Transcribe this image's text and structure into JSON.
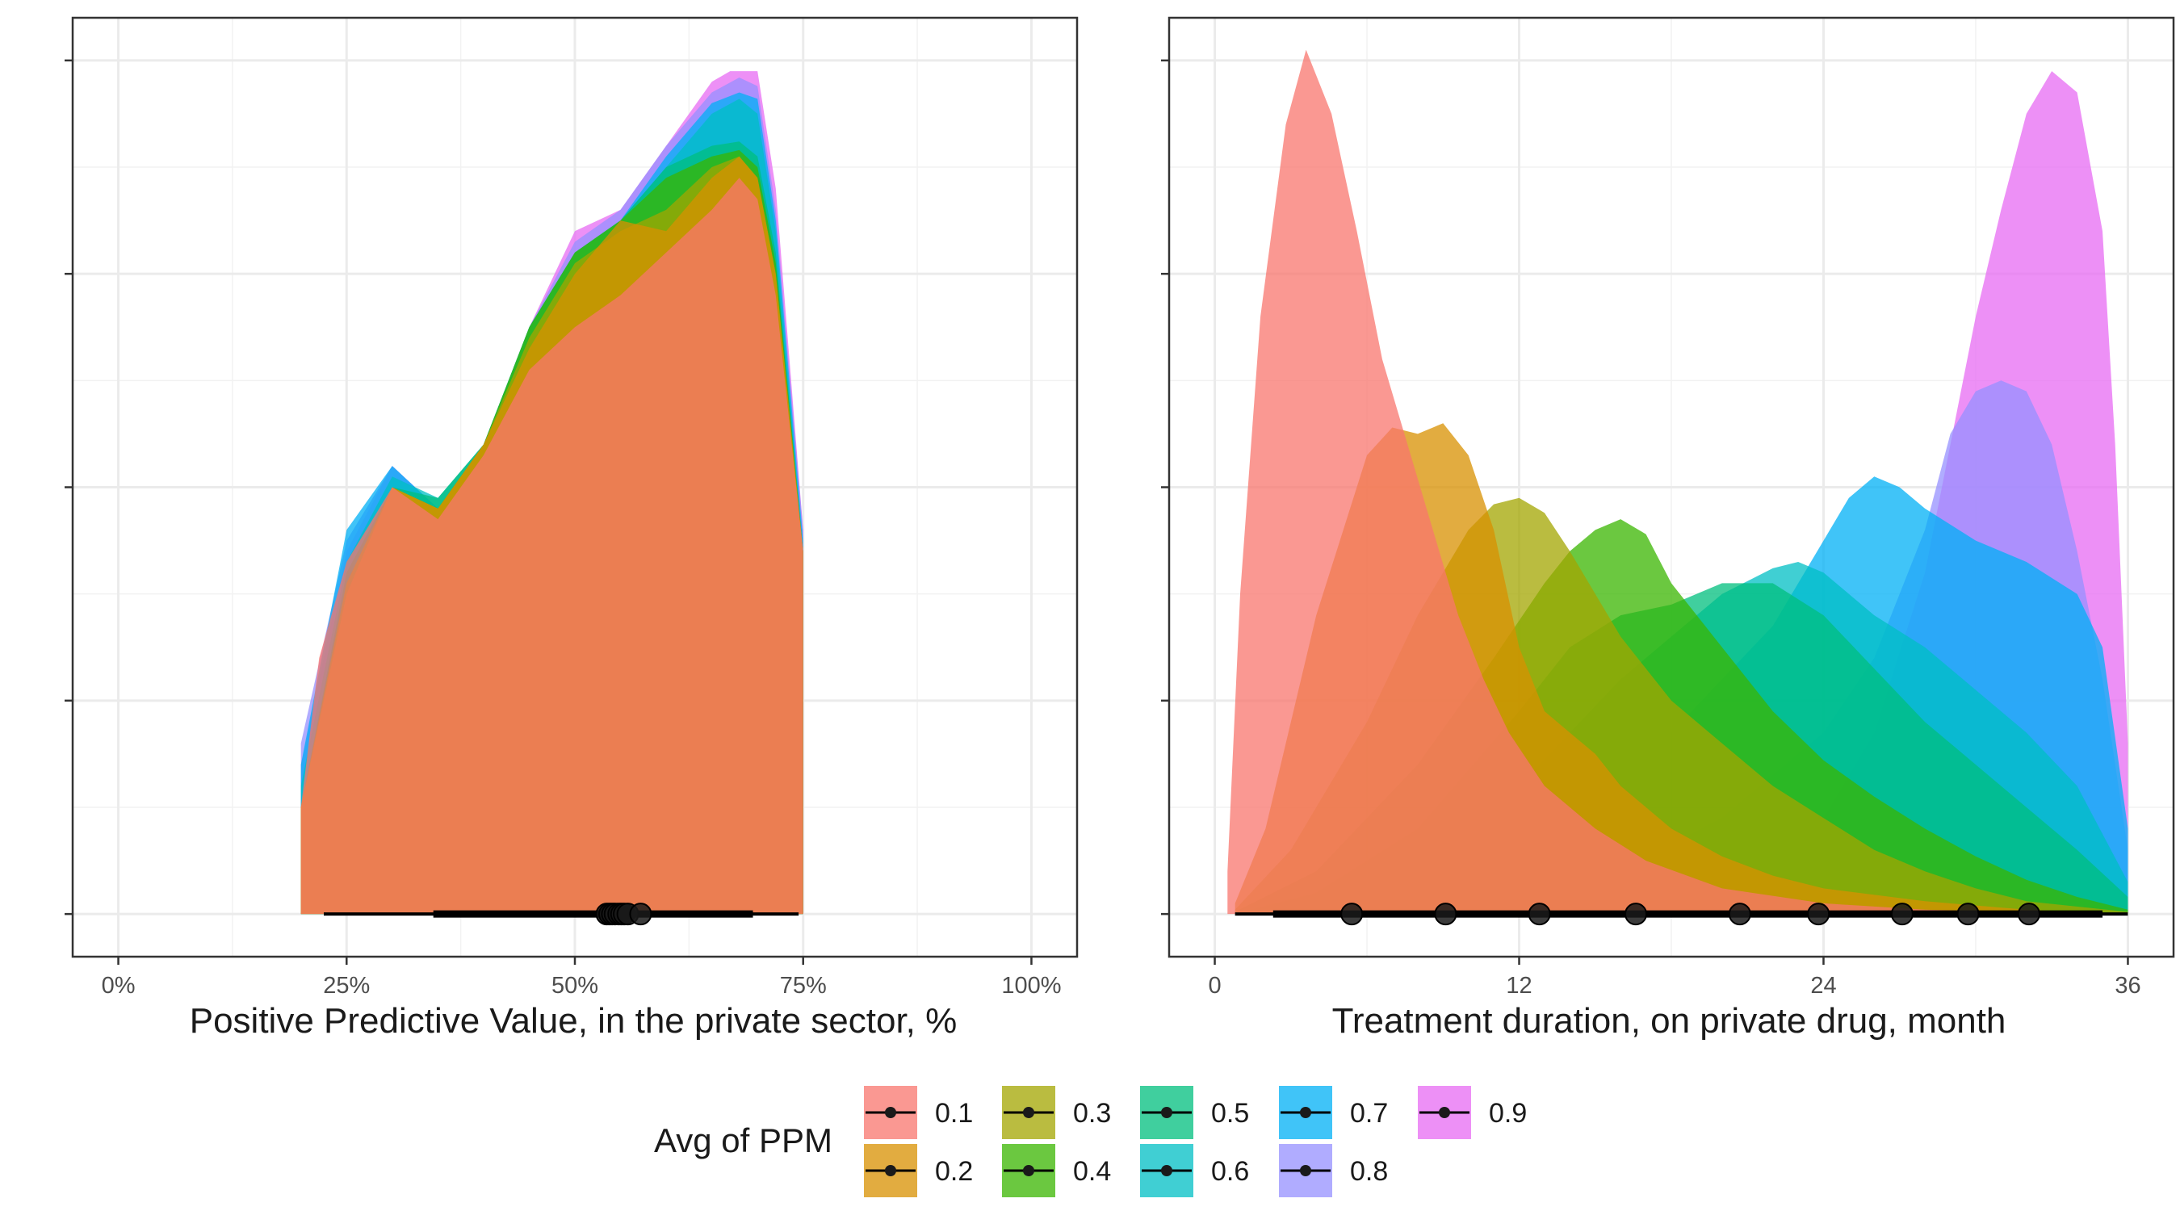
{
  "legend": {
    "title": "Avg of PPM",
    "items": [
      {
        "label": "0.1",
        "color": "#F8766D"
      },
      {
        "label": "0.2",
        "color": "#D89000"
      },
      {
        "label": "0.3",
        "color": "#A3A500"
      },
      {
        "label": "0.4",
        "color": "#39B600"
      },
      {
        "label": "0.5",
        "color": "#00BF7D"
      },
      {
        "label": "0.6",
        "color": "#00BFC4"
      },
      {
        "label": "0.7",
        "color": "#00B0F6"
      },
      {
        "label": "0.8",
        "color": "#9590FF"
      },
      {
        "label": "0.9",
        "color": "#E76BF3"
      }
    ]
  },
  "chart_data": [
    {
      "type": "area",
      "subtype": "density",
      "title": "",
      "xlabel": "Positive Predictive Value, in the private sector, %",
      "ylabel": "",
      "xlim": [
        -5,
        105
      ],
      "ylim": [
        -0.2,
        4.2
      ],
      "x_ticks": [
        0,
        25,
        50,
        75,
        100
      ],
      "x_tick_labels": [
        "0%",
        "25%",
        "50%",
        "75%",
        "100%"
      ],
      "y_tick_count": 5,
      "grid": true,
      "fill_opacity": 0.75,
      "series": [
        {
          "name": "0.9",
          "x": [
            20,
            25,
            30,
            35,
            40,
            45,
            50,
            55,
            60,
            65,
            67,
            70,
            72,
            75
          ],
          "y": [
            0.7,
            1.7,
            2.1,
            1.9,
            2.2,
            2.75,
            3.2,
            3.3,
            3.6,
            3.9,
            3.95,
            3.95,
            3.4,
            1.8
          ]
        },
        {
          "name": "0.8",
          "x": [
            20,
            25,
            30,
            35,
            40,
            45,
            50,
            55,
            60,
            65,
            68,
            70,
            72,
            75
          ],
          "y": [
            0.8,
            1.75,
            2.1,
            1.9,
            2.2,
            2.75,
            3.15,
            3.3,
            3.6,
            3.85,
            3.92,
            3.88,
            3.3,
            1.8
          ]
        },
        {
          "name": "0.7",
          "x": [
            20,
            25,
            30,
            35,
            40,
            45,
            50,
            55,
            60,
            65,
            68,
            70,
            72,
            75
          ],
          "y": [
            0.7,
            1.8,
            2.1,
            1.9,
            2.2,
            2.75,
            3.1,
            3.25,
            3.55,
            3.8,
            3.85,
            3.82,
            3.25,
            1.75
          ]
        },
        {
          "name": "0.6",
          "x": [
            20,
            25,
            30,
            35,
            40,
            45,
            50,
            55,
            60,
            65,
            68,
            70,
            72,
            75
          ],
          "y": [
            0.6,
            1.65,
            2.05,
            1.95,
            2.2,
            2.75,
            3.1,
            3.25,
            3.5,
            3.75,
            3.82,
            3.75,
            3.2,
            1.7
          ]
        },
        {
          "name": "0.5",
          "x": [
            20,
            25,
            30,
            35,
            40,
            45,
            50,
            55,
            60,
            65,
            68,
            70,
            72,
            75
          ],
          "y": [
            0.5,
            1.6,
            2.0,
            1.95,
            2.2,
            2.75,
            3.1,
            3.25,
            3.5,
            3.6,
            3.62,
            3.55,
            3.1,
            1.7
          ]
        },
        {
          "name": "0.4",
          "x": [
            20,
            25,
            30,
            35,
            40,
            45,
            50,
            55,
            60,
            65,
            68,
            70,
            72,
            75
          ],
          "y": [
            0.5,
            1.55,
            2.0,
            1.9,
            2.2,
            2.75,
            3.1,
            3.25,
            3.45,
            3.55,
            3.58,
            3.5,
            3.05,
            1.7
          ]
        },
        {
          "name": "0.3",
          "x": [
            20,
            25,
            30,
            35,
            40,
            45,
            50,
            55,
            60,
            65,
            68,
            70,
            72,
            75
          ],
          "y": [
            0.5,
            1.55,
            2.0,
            1.9,
            2.2,
            2.7,
            3.05,
            3.2,
            3.3,
            3.5,
            3.55,
            3.45,
            3.0,
            1.7
          ]
        },
        {
          "name": "0.2",
          "x": [
            20,
            25,
            30,
            35,
            40,
            45,
            50,
            55,
            60,
            65,
            68,
            70,
            72,
            75
          ],
          "y": [
            0.5,
            1.5,
            2.0,
            1.9,
            2.2,
            2.65,
            3.0,
            3.25,
            3.2,
            3.45,
            3.55,
            3.45,
            3.0,
            1.7
          ]
        },
        {
          "name": "0.1",
          "x": [
            20,
            22,
            25,
            30,
            35,
            40,
            45,
            50,
            55,
            60,
            65,
            68,
            70,
            72,
            75
          ],
          "y": [
            0.5,
            1.2,
            1.65,
            2.0,
            1.85,
            2.15,
            2.55,
            2.75,
            2.9,
            3.1,
            3.3,
            3.45,
            3.35,
            2.9,
            1.7
          ]
        }
      ],
      "interval_bar": {
        "outer": [
          22.5,
          74.5
        ],
        "inner": [
          34.5,
          69.5
        ]
      },
      "points": [
        {
          "name": "0.1",
          "x": 53.5
        },
        {
          "name": "0.2",
          "x": 53.8
        },
        {
          "name": "0.3",
          "x": 54.1
        },
        {
          "name": "0.4",
          "x": 54.4
        },
        {
          "name": "0.5",
          "x": 54.8
        },
        {
          "name": "0.6",
          "x": 55.1
        },
        {
          "name": "0.7",
          "x": 55.4
        },
        {
          "name": "0.8",
          "x": 55.8
        },
        {
          "name": "0.9",
          "x": 57.2
        }
      ]
    },
    {
      "type": "area",
      "subtype": "density",
      "title": "",
      "xlabel": "Treatment duration, on private drug, month",
      "ylabel": "",
      "xlim": [
        -1.8,
        37.8
      ],
      "ylim": [
        -0.2,
        4.2
      ],
      "x_ticks": [
        0,
        12,
        24,
        36
      ],
      "x_tick_labels": [
        "0",
        "12",
        "24",
        "36"
      ],
      "y_tick_count": 5,
      "grid": true,
      "fill_opacity": 0.75,
      "series": [
        {
          "name": "0.1",
          "x": [
            0.5,
            1.0,
            1.8,
            2.8,
            3.6,
            4.6,
            5.6,
            6.6,
            7.6,
            8.6,
            9.6,
            10.6,
            11.6,
            13,
            15,
            17,
            20,
            24,
            28,
            32,
            36
          ],
          "y": [
            0.2,
            1.5,
            2.8,
            3.7,
            4.05,
            3.75,
            3.2,
            2.6,
            2.2,
            1.8,
            1.4,
            1.1,
            0.85,
            0.6,
            0.4,
            0.25,
            0.12,
            0.05,
            0.02,
            0.01,
            0.0
          ]
        },
        {
          "name": "0.2",
          "x": [
            0.8,
            2,
            4,
            6,
            7,
            8,
            9,
            10,
            11,
            12,
            13,
            14,
            15,
            16,
            18,
            20,
            22,
            24,
            28,
            32,
            36
          ],
          "y": [
            0.05,
            0.4,
            1.4,
            2.15,
            2.28,
            2.25,
            2.3,
            2.15,
            1.8,
            1.25,
            0.95,
            0.85,
            0.75,
            0.6,
            0.4,
            0.27,
            0.18,
            0.12,
            0.06,
            0.02,
            0.0
          ]
        },
        {
          "name": "0.3",
          "x": [
            0.8,
            3,
            6,
            8,
            10,
            11,
            12,
            13,
            14,
            16,
            18,
            20,
            22,
            24,
            26,
            28,
            30,
            32,
            36
          ],
          "y": [
            0.02,
            0.3,
            0.9,
            1.4,
            1.8,
            1.92,
            1.95,
            1.88,
            1.7,
            1.3,
            1.0,
            0.8,
            0.6,
            0.45,
            0.3,
            0.2,
            0.12,
            0.06,
            0.01
          ]
        },
        {
          "name": "0.4",
          "x": [
            0.8,
            4,
            8,
            11,
            13,
            14,
            15,
            16,
            17,
            18,
            20,
            22,
            24,
            26,
            28,
            30,
            32,
            34,
            36
          ],
          "y": [
            0.01,
            0.2,
            0.7,
            1.2,
            1.55,
            1.7,
            1.8,
            1.85,
            1.78,
            1.55,
            1.25,
            0.95,
            0.72,
            0.55,
            0.4,
            0.27,
            0.16,
            0.08,
            0.02
          ]
        },
        {
          "name": "0.5",
          "x": [
            0.8,
            4,
            8,
            12,
            14,
            16,
            18,
            20,
            22,
            24,
            26,
            28,
            30,
            32,
            34,
            36
          ],
          "y": [
            0.0,
            0.1,
            0.4,
            0.95,
            1.25,
            1.4,
            1.45,
            1.55,
            1.55,
            1.4,
            1.15,
            0.9,
            0.7,
            0.5,
            0.3,
            0.08
          ]
        },
        {
          "name": "0.6",
          "x": [
            0.8,
            4,
            8,
            12,
            14,
            16,
            18,
            20,
            22,
            23,
            24,
            25,
            26,
            28,
            30,
            32,
            34,
            36
          ],
          "y": [
            0.0,
            0.05,
            0.25,
            0.6,
            0.85,
            1.1,
            1.3,
            1.5,
            1.62,
            1.65,
            1.6,
            1.5,
            1.4,
            1.25,
            1.05,
            0.85,
            0.6,
            0.15
          ]
        },
        {
          "name": "0.7",
          "x": [
            0.8,
            6,
            10,
            14,
            18,
            20,
            22,
            24,
            25,
            26,
            27,
            28,
            30,
            32,
            34,
            35,
            36
          ],
          "y": [
            0.0,
            0.05,
            0.2,
            0.5,
            0.85,
            1.1,
            1.35,
            1.75,
            1.95,
            2.05,
            2.0,
            1.9,
            1.75,
            1.65,
            1.5,
            1.25,
            0.4
          ]
        },
        {
          "name": "0.8",
          "x": [
            0.8,
            10,
            16,
            20,
            24,
            26,
            28,
            29,
            30,
            31,
            32,
            33,
            34,
            35,
            36
          ],
          "y": [
            0.0,
            0.05,
            0.2,
            0.45,
            0.85,
            1.2,
            1.8,
            2.25,
            2.45,
            2.5,
            2.45,
            2.2,
            1.7,
            1.1,
            0.3
          ]
        },
        {
          "name": "0.9",
          "x": [
            0.8,
            14,
            20,
            24,
            26,
            28,
            29,
            30,
            31,
            32,
            33,
            34,
            35,
            35.5,
            36
          ],
          "y": [
            0.0,
            0.02,
            0.15,
            0.45,
            0.85,
            1.6,
            2.2,
            2.8,
            3.3,
            3.75,
            3.95,
            3.85,
            3.2,
            2.2,
            0.8
          ]
        }
      ],
      "interval_bar": {
        "outer": [
          0.8,
          36
        ],
        "inner": [
          2.3,
          35
        ]
      },
      "points": [
        {
          "name": "0.1",
          "x": 5.4
        },
        {
          "name": "0.2",
          "x": 9.1
        },
        {
          "name": "0.3",
          "x": 12.8
        },
        {
          "name": "0.4",
          "x": 16.6
        },
        {
          "name": "0.5",
          "x": 20.7
        },
        {
          "name": "0.6",
          "x": 23.8
        },
        {
          "name": "0.7",
          "x": 27.1
        },
        {
          "name": "0.8",
          "x": 29.7
        },
        {
          "name": "0.9",
          "x": 32.1
        }
      ]
    }
  ]
}
